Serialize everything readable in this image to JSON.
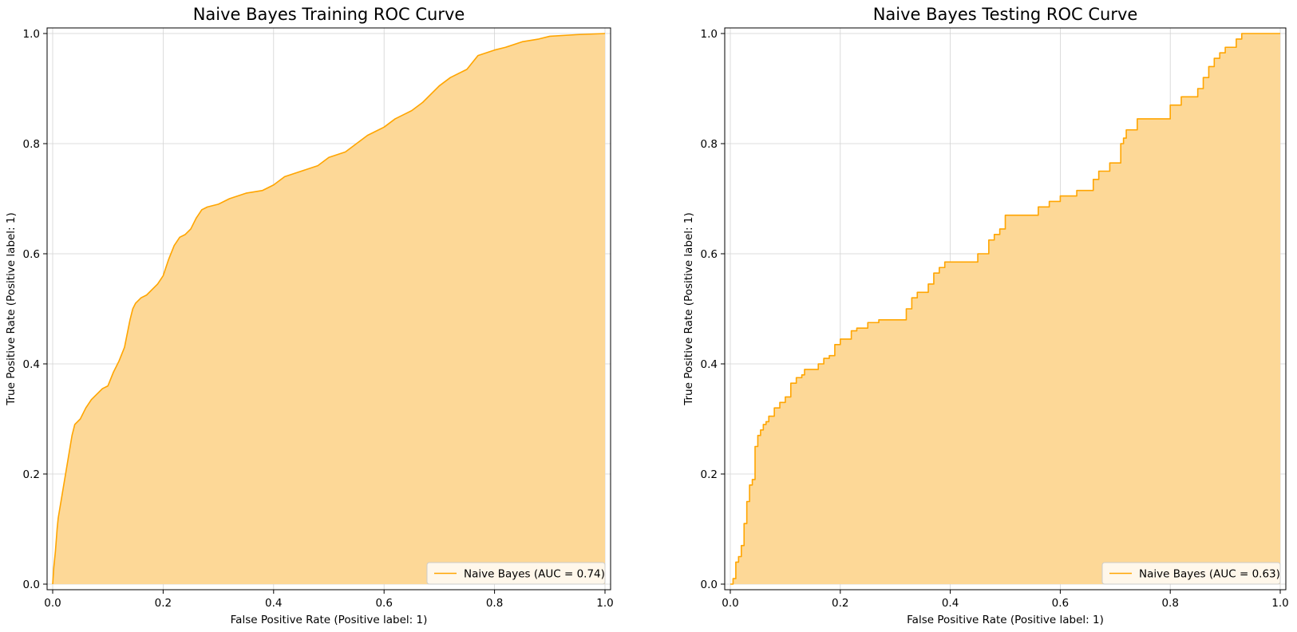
{
  "colors": {
    "line": "#ffa500",
    "fill": "#fdd897",
    "grid": "#d3d3d3",
    "axis": "#000000",
    "background": "#ffffff"
  },
  "chart_data": [
    {
      "type": "line",
      "title": "Naive Bayes Training ROC Curve",
      "xlabel": "False Positive Rate (Positive label: 1)",
      "ylabel": "True Positive Rate (Positive label: 1)",
      "xlim": [
        0,
        1
      ],
      "ylim": [
        0,
        1
      ],
      "xticks": [
        "0.0",
        "0.2",
        "0.4",
        "0.6",
        "0.8",
        "1.0"
      ],
      "yticks": [
        "0.0",
        "0.2",
        "0.4",
        "0.6",
        "0.8",
        "1.0"
      ],
      "grid": true,
      "fill_under": true,
      "legend_position": "lower-right",
      "series": [
        {
          "name": "Naive Bayes (AUC = 0.74)",
          "x": [
            0,
            0.002,
            0.005,
            0.008,
            0.01,
            0.015,
            0.02,
            0.025,
            0.03,
            0.035,
            0.04,
            0.05,
            0.06,
            0.07,
            0.08,
            0.09,
            0.1,
            0.11,
            0.12,
            0.13,
            0.14,
            0.145,
            0.15,
            0.16,
            0.17,
            0.18,
            0.19,
            0.2,
            0.21,
            0.22,
            0.23,
            0.24,
            0.25,
            0.26,
            0.27,
            0.28,
            0.3,
            0.32,
            0.35,
            0.38,
            0.4,
            0.42,
            0.45,
            0.48,
            0.5,
            0.53,
            0.55,
            0.57,
            0.59,
            0.6,
            0.62,
            0.65,
            0.67,
            0.7,
            0.72,
            0.75,
            0.77,
            0.8,
            0.82,
            0.85,
            0.88,
            0.9,
            0.95,
            1.0
          ],
          "y": [
            0,
            0.03,
            0.06,
            0.1,
            0.12,
            0.15,
            0.18,
            0.21,
            0.24,
            0.27,
            0.29,
            0.3,
            0.32,
            0.335,
            0.345,
            0.355,
            0.36,
            0.385,
            0.405,
            0.43,
            0.48,
            0.5,
            0.51,
            0.52,
            0.525,
            0.535,
            0.545,
            0.56,
            0.59,
            0.615,
            0.63,
            0.635,
            0.645,
            0.665,
            0.68,
            0.685,
            0.69,
            0.7,
            0.71,
            0.715,
            0.725,
            0.74,
            0.75,
            0.76,
            0.775,
            0.785,
            0.8,
            0.815,
            0.825,
            0.83,
            0.845,
            0.86,
            0.875,
            0.905,
            0.92,
            0.935,
            0.96,
            0.97,
            0.975,
            0.985,
            0.99,
            0.995,
            0.998,
            1.0
          ]
        }
      ]
    },
    {
      "type": "line",
      "title": "Naive Bayes Testing ROC Curve",
      "xlabel": "False Positive Rate (Positive label: 1)",
      "ylabel": "True Positive Rate (Positive label: 1)",
      "xlim": [
        0,
        1
      ],
      "ylim": [
        0,
        1
      ],
      "xticks": [
        "0.0",
        "0.2",
        "0.4",
        "0.6",
        "0.8",
        "1.0"
      ],
      "yticks": [
        "0.0",
        "0.2",
        "0.4",
        "0.6",
        "0.8",
        "1.0"
      ],
      "grid": true,
      "fill_under": true,
      "step": true,
      "legend_position": "lower-right",
      "series": [
        {
          "name": "Naive Bayes (AUC = 0.63)",
          "x": [
            0,
            0.005,
            0.01,
            0.015,
            0.02,
            0.025,
            0.03,
            0.035,
            0.04,
            0.045,
            0.05,
            0.055,
            0.06,
            0.065,
            0.07,
            0.08,
            0.09,
            0.1,
            0.11,
            0.12,
            0.13,
            0.135,
            0.14,
            0.16,
            0.17,
            0.18,
            0.19,
            0.2,
            0.22,
            0.23,
            0.25,
            0.27,
            0.28,
            0.32,
            0.33,
            0.34,
            0.36,
            0.37,
            0.38,
            0.39,
            0.4,
            0.45,
            0.47,
            0.48,
            0.49,
            0.5,
            0.52,
            0.56,
            0.58,
            0.6,
            0.63,
            0.66,
            0.67,
            0.69,
            0.71,
            0.715,
            0.72,
            0.74,
            0.78,
            0.8,
            0.82,
            0.85,
            0.86,
            0.87,
            0.88,
            0.89,
            0.9,
            0.92,
            0.93,
            1.0
          ],
          "y": [
            0,
            0.01,
            0.04,
            0.05,
            0.07,
            0.11,
            0.15,
            0.18,
            0.19,
            0.25,
            0.27,
            0.28,
            0.29,
            0.295,
            0.305,
            0.32,
            0.33,
            0.34,
            0.365,
            0.375,
            0.38,
            0.39,
            0.39,
            0.4,
            0.41,
            0.415,
            0.435,
            0.445,
            0.46,
            0.465,
            0.475,
            0.48,
            0.48,
            0.5,
            0.52,
            0.53,
            0.545,
            0.565,
            0.575,
            0.585,
            0.585,
            0.6,
            0.625,
            0.635,
            0.645,
            0.67,
            0.67,
            0.685,
            0.695,
            0.705,
            0.715,
            0.735,
            0.75,
            0.765,
            0.8,
            0.81,
            0.825,
            0.845,
            0.845,
            0.87,
            0.885,
            0.9,
            0.92,
            0.94,
            0.955,
            0.965,
            0.975,
            0.99,
            1.0,
            1.0
          ]
        }
      ]
    }
  ]
}
